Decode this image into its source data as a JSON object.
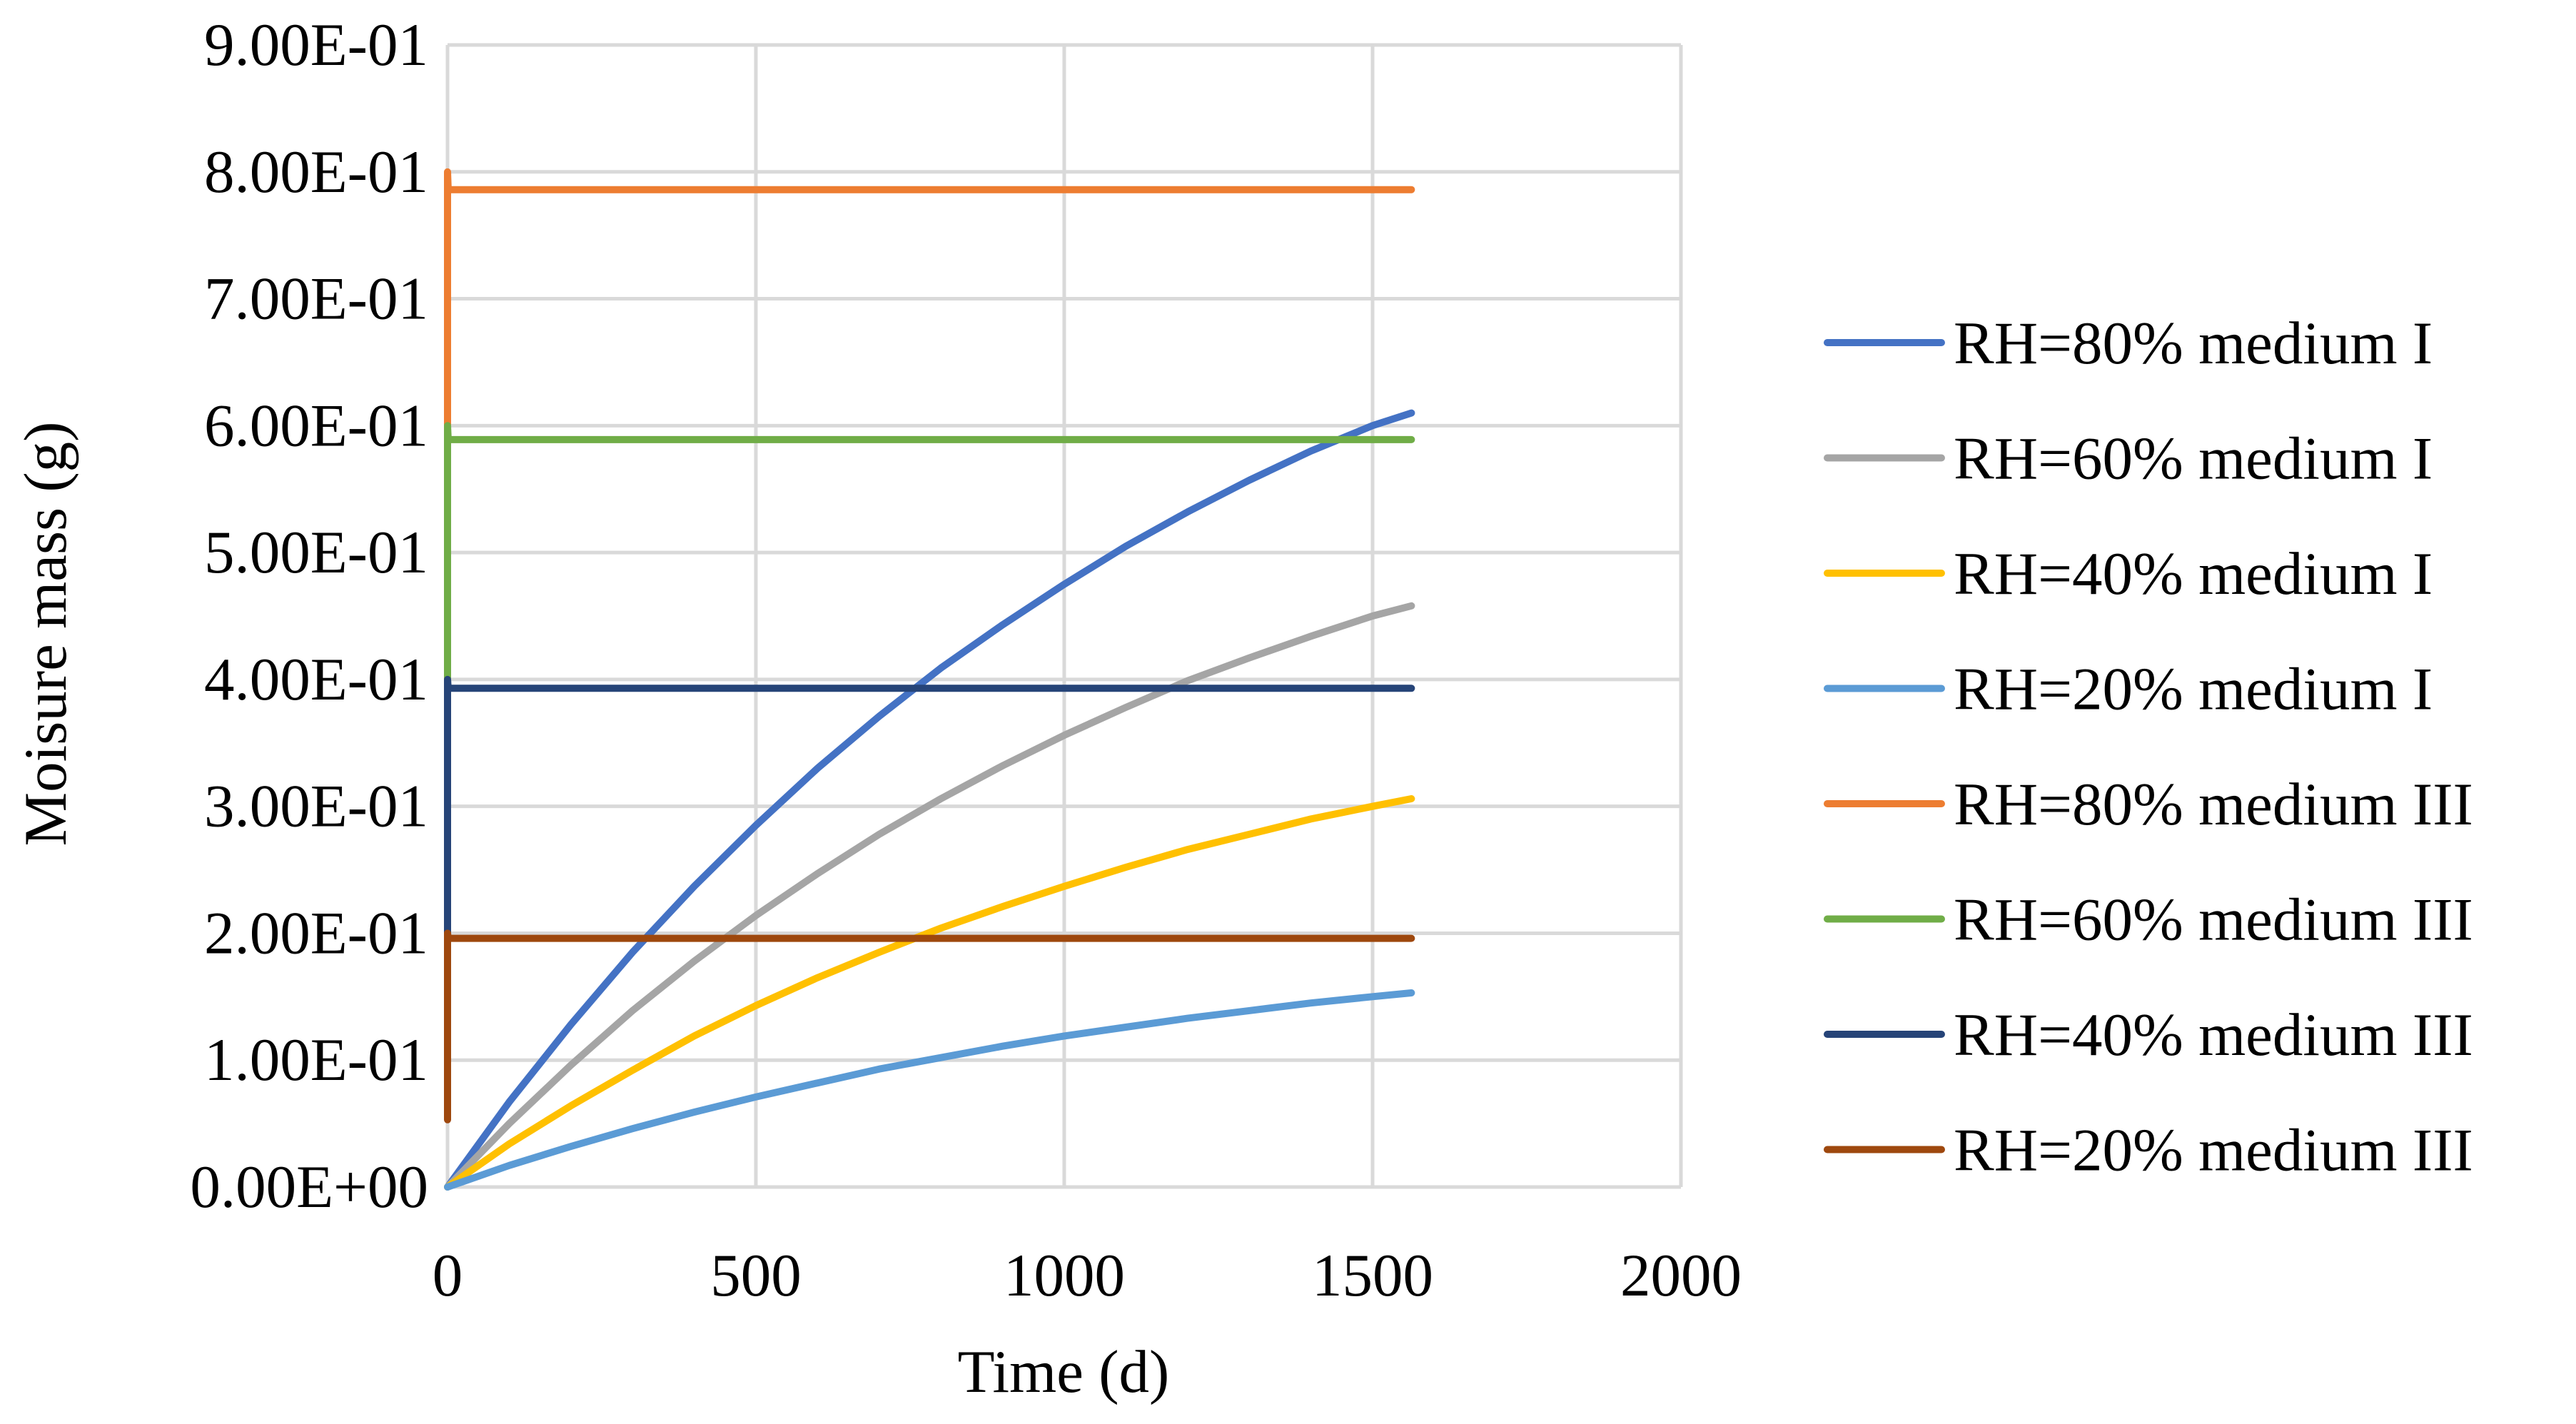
{
  "chart_data": {
    "type": "line",
    "xlabel": "Time (d)",
    "ylabel": "Moisure mass (g)",
    "xlim": [
      0,
      2000
    ],
    "ylim": [
      0,
      0.9
    ],
    "xticks": [
      0,
      500,
      1000,
      1500,
      2000
    ],
    "xtick_labels": [
      "0",
      "500",
      "1000",
      "1500",
      "2000"
    ],
    "yticks": [
      0,
      0.1,
      0.2,
      0.3,
      0.4,
      0.5,
      0.6,
      0.7,
      0.8,
      0.9
    ],
    "ytick_labels": [
      "0.00E+00",
      "1.00E-01",
      "2.00E-01",
      "3.00E-01",
      "4.00E-01",
      "5.00E-01",
      "6.00E-01",
      "7.00E-01",
      "8.00E-01",
      "9.00E-01"
    ],
    "grid": true,
    "legend_position": "right",
    "series": [
      {
        "name": "RH=80% medium I",
        "color": "#4472C4",
        "x": [
          0,
          100,
          200,
          300,
          400,
          500,
          600,
          700,
          800,
          900,
          1000,
          1100,
          1200,
          1300,
          1400,
          1500,
          1563
        ],
        "y": [
          0,
          0.067,
          0.128,
          0.185,
          0.237,
          0.285,
          0.33,
          0.371,
          0.409,
          0.443,
          0.475,
          0.505,
          0.532,
          0.557,
          0.58,
          0.6,
          0.61
        ]
      },
      {
        "name": "RH=60% medium I",
        "color": "#A5A5A5",
        "x": [
          0,
          100,
          200,
          300,
          400,
          500,
          600,
          700,
          800,
          900,
          1000,
          1100,
          1200,
          1300,
          1400,
          1500,
          1563
        ],
        "y": [
          0,
          0.05,
          0.096,
          0.139,
          0.178,
          0.214,
          0.247,
          0.278,
          0.306,
          0.332,
          0.356,
          0.378,
          0.399,
          0.417,
          0.434,
          0.45,
          0.458
        ]
      },
      {
        "name": "RH=40% medium I",
        "color": "#FFC000",
        "x": [
          0,
          100,
          200,
          300,
          400,
          500,
          600,
          700,
          800,
          900,
          1000,
          1100,
          1200,
          1300,
          1400,
          1500,
          1563
        ],
        "y": [
          0,
          0.034,
          0.064,
          0.092,
          0.119,
          0.143,
          0.165,
          0.185,
          0.204,
          0.221,
          0.237,
          0.252,
          0.266,
          0.278,
          0.29,
          0.3,
          0.306
        ]
      },
      {
        "name": "RH=20% medium I",
        "color": "#5B9BD5",
        "x": [
          0,
          100,
          200,
          300,
          400,
          500,
          600,
          700,
          800,
          900,
          1000,
          1100,
          1200,
          1300,
          1400,
          1500,
          1563
        ],
        "y": [
          0,
          0.017,
          0.032,
          0.046,
          0.059,
          0.071,
          0.082,
          0.093,
          0.102,
          0.111,
          0.119,
          0.126,
          0.133,
          0.139,
          0.145,
          0.15,
          0.153
        ]
      },
      {
        "name": "RH=80% medium III",
        "color": "#ED7D31",
        "x": [
          0,
          0,
          1,
          1563
        ],
        "y": [
          0.6,
          0.8,
          0.786,
          0.786
        ]
      },
      {
        "name": "RH=60% medium III",
        "color": "#70AD47",
        "x": [
          0,
          0,
          1,
          1563
        ],
        "y": [
          0.4,
          0.6,
          0.589,
          0.589
        ]
      },
      {
        "name": "RH=40% medium III",
        "color": "#264478",
        "x": [
          0,
          0,
          1,
          1563
        ],
        "y": [
          0.2,
          0.4,
          0.393,
          0.393
        ]
      },
      {
        "name": "RH=20% medium III",
        "color": "#9E480E",
        "x": [
          0,
          0,
          1,
          1563
        ],
        "y": [
          0.053,
          0.2,
          0.196,
          0.196
        ]
      }
    ]
  }
}
